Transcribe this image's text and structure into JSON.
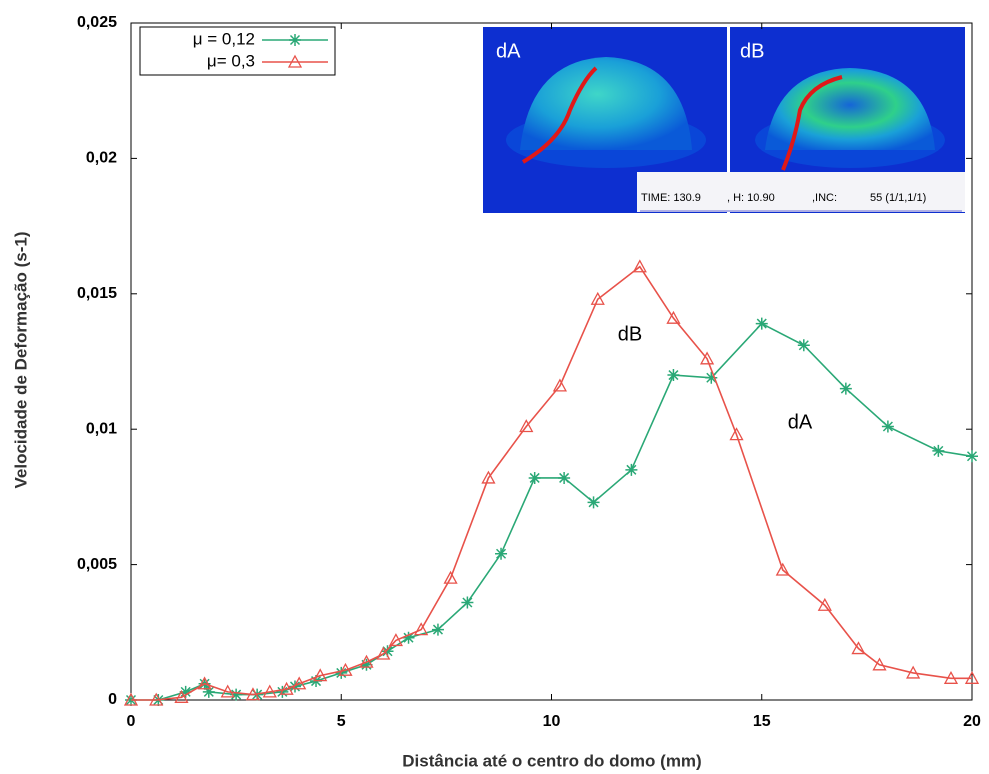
{
  "chart_data": {
    "type": "line",
    "x_label": "Distância até o centro do domo (mm)",
    "y_label": "Velocidade de Deformação (s-1)",
    "xlim": [
      0,
      20
    ],
    "ylim": [
      0,
      0.025
    ],
    "xticks": [
      0,
      5,
      10,
      15,
      20
    ],
    "yticks": [
      0,
      {
        "value": 0.005,
        "label": "0,005"
      },
      {
        "value": 0.01,
        "label": "0,01"
      },
      {
        "value": 0.015,
        "label": "0,015"
      },
      {
        "value": 0.02,
        "label": "0,02"
      },
      {
        "value": 0.025,
        "label": "0,025"
      }
    ],
    "legend": "upper left",
    "series": [
      {
        "name": "μ = 0,12",
        "color": "#2aa876",
        "marker": "star",
        "x": [
          0,
          0.65,
          1.3,
          1.75,
          1.85,
          2.5,
          3.0,
          3.6,
          3.9,
          4.4,
          5.0,
          5.6,
          6.1,
          6.6,
          7.3,
          8.0,
          8.8,
          9.6,
          10.3,
          11.0,
          11.9,
          12.9,
          13.8,
          15.0,
          16.0,
          17.0,
          18.0,
          19.2,
          20
        ],
        "values": [
          0,
          0,
          0.0003,
          0.0006,
          0.0003,
          0.0002,
          0.0002,
          0.0003,
          0.0005,
          0.0007,
          0.001,
          0.0013,
          0.0018,
          0.0023,
          0.0026,
          0.0036,
          0.0054,
          0.0082,
          0.0082,
          0.0073,
          0.0085,
          0.012,
          0.0119,
          0.0139,
          0.0131,
          0.0115,
          0.0101,
          0.0092,
          0.009
        ]
      },
      {
        "name": "μ= 0,3",
        "color": "#e8524a",
        "marker": "triangle",
        "x": [
          0,
          0.6,
          1.2,
          1.75,
          2.3,
          2.9,
          3.3,
          3.7,
          4.0,
          4.5,
          5.1,
          5.6,
          6.0,
          6.3,
          6.9,
          7.6,
          8.5,
          9.4,
          10.2,
          11.1,
          12.1,
          12.9,
          13.7,
          14.4,
          15.5,
          16.5,
          17.3,
          17.8,
          18.6,
          19.5,
          20
        ],
        "values": [
          0,
          0,
          0.0001,
          0.0006,
          0.0003,
          0.0002,
          0.0003,
          0.0004,
          0.0006,
          0.0009,
          0.0011,
          0.0014,
          0.0017,
          0.0022,
          0.0026,
          0.0045,
          0.0082,
          0.0101,
          0.0116,
          0.0148,
          0.016,
          0.0141,
          0.0126,
          0.0098,
          0.0048,
          0.0035,
          0.0019,
          0.0013,
          0.001,
          0.0008,
          0.0008
        ]
      }
    ],
    "annotations": [
      "dB",
      "dA"
    ],
    "inset": {
      "panels": [
        "dA",
        "dB"
      ],
      "status": [
        "TIME:  130.9",
        ", H:  10.90",
        ",INC:",
        "55 (1/1,1/1)"
      ]
    }
  }
}
